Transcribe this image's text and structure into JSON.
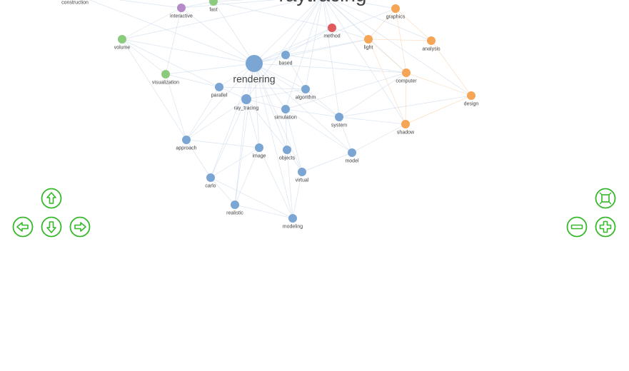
{
  "graph": {
    "colors": {
      "blue": "#7ba6d4",
      "orange": "#f5a556",
      "green": "#8acb7e",
      "purple": "#b48bc8",
      "red": "#e0595c",
      "edge": "#c9d8ea",
      "control": "#35b82a"
    },
    "nodes": [
      {
        "id": "raytracing",
        "label": "raytracing",
        "group": "red",
        "size": "huge"
      },
      {
        "id": "construction",
        "label": "construction",
        "group": "green",
        "size": "small"
      },
      {
        "id": "interactive",
        "label": "interactive",
        "group": "purple",
        "size": "small"
      },
      {
        "id": "fast",
        "label": "fast",
        "group": "green",
        "size": "small"
      },
      {
        "id": "graphics",
        "label": "graphics",
        "group": "orange",
        "size": "small"
      },
      {
        "id": "method",
        "label": "method",
        "group": "red",
        "size": "small"
      },
      {
        "id": "volume",
        "label": "volume",
        "group": "green",
        "size": "small"
      },
      {
        "id": "light",
        "label": "light",
        "group": "orange",
        "size": "small"
      },
      {
        "id": "analysis",
        "label": "analysis",
        "group": "orange",
        "size": "small"
      },
      {
        "id": "rendering",
        "label": "rendering",
        "group": "blue",
        "size": "large"
      },
      {
        "id": "based",
        "label": "based",
        "group": "blue",
        "size": "small"
      },
      {
        "id": "computer",
        "label": "computer",
        "group": "orange",
        "size": "small"
      },
      {
        "id": "visualization",
        "label": "visualization",
        "group": "green",
        "size": "small"
      },
      {
        "id": "parallel",
        "label": "parallel",
        "group": "blue",
        "size": "small"
      },
      {
        "id": "algorithm",
        "label": "algorithm",
        "group": "blue",
        "size": "small"
      },
      {
        "id": "design",
        "label": "design",
        "group": "orange",
        "size": "small"
      },
      {
        "id": "ray_tracing",
        "label": "ray_tracing",
        "group": "blue",
        "size": "medium"
      },
      {
        "id": "simulation",
        "label": "simulation",
        "group": "blue",
        "size": "small"
      },
      {
        "id": "system",
        "label": "system",
        "group": "blue",
        "size": "small"
      },
      {
        "id": "shadow",
        "label": "shadow",
        "group": "orange",
        "size": "small"
      },
      {
        "id": "approach",
        "label": "approach",
        "group": "blue",
        "size": "small"
      },
      {
        "id": "image",
        "label": "image",
        "group": "blue",
        "size": "small"
      },
      {
        "id": "objects",
        "label": "objects",
        "group": "blue",
        "size": "small"
      },
      {
        "id": "model",
        "label": "model",
        "group": "blue",
        "size": "small"
      },
      {
        "id": "virtual",
        "label": "virtual",
        "group": "blue",
        "size": "small"
      },
      {
        "id": "carlo",
        "label": "carlo",
        "group": "blue",
        "size": "small"
      },
      {
        "id": "realistic",
        "label": "realistic",
        "group": "blue",
        "size": "small"
      },
      {
        "id": "modeling",
        "label": "modeling",
        "group": "blue",
        "size": "small"
      }
    ],
    "edges": [
      [
        "rendering",
        "raytracing"
      ],
      [
        "rendering",
        "based"
      ],
      [
        "rendering",
        "parallel"
      ],
      [
        "rendering",
        "ray_tracing"
      ],
      [
        "rendering",
        "algorithm"
      ],
      [
        "rendering",
        "simulation"
      ],
      [
        "rendering",
        "image"
      ],
      [
        "rendering",
        "objects"
      ],
      [
        "rendering",
        "approach"
      ],
      [
        "rendering",
        "visualization"
      ],
      [
        "rendering",
        "volume"
      ],
      [
        "rendering",
        "interactive"
      ],
      [
        "rendering",
        "fast"
      ],
      [
        "rendering",
        "system"
      ],
      [
        "rendering",
        "model"
      ],
      [
        "rendering",
        "carlo"
      ],
      [
        "rendering",
        "realistic"
      ],
      [
        "rendering",
        "modeling"
      ],
      [
        "rendering",
        "virtual"
      ],
      [
        "rendering",
        "computer"
      ],
      [
        "rendering",
        "light"
      ],
      [
        "rendering",
        "method"
      ],
      [
        "rendering",
        "construction"
      ],
      [
        "rendering",
        "graphics"
      ],
      [
        "raytracing",
        "based"
      ],
      [
        "raytracing",
        "method"
      ],
      [
        "raytracing",
        "light"
      ],
      [
        "raytracing",
        "graphics"
      ],
      [
        "raytracing",
        "computer"
      ],
      [
        "raytracing",
        "analysis"
      ],
      [
        "raytracing",
        "design"
      ],
      [
        "raytracing",
        "shadow"
      ],
      [
        "raytracing",
        "simulation"
      ],
      [
        "raytracing",
        "algorithm"
      ],
      [
        "raytracing",
        "system"
      ],
      [
        "raytracing",
        "interactive"
      ],
      [
        "raytracing",
        "fast"
      ],
      [
        "raytracing",
        "volume"
      ],
      [
        "raytracing",
        "construction"
      ],
      [
        "raytracing",
        "ray_tracing"
      ],
      [
        "ray_tracing",
        "simulation"
      ],
      [
        "ray_tracing",
        "image"
      ],
      [
        "ray_tracing",
        "objects"
      ],
      [
        "ray_tracing",
        "carlo"
      ],
      [
        "ray_tracing",
        "realistic"
      ],
      [
        "ray_tracing",
        "approach"
      ],
      [
        "ray_tracing",
        "parallel"
      ],
      [
        "ray_tracing",
        "algorithm"
      ],
      [
        "simulation",
        "system"
      ],
      [
        "simulation",
        "objects"
      ],
      [
        "simulation",
        "virtual"
      ],
      [
        "simulation",
        "model"
      ],
      [
        "system",
        "model"
      ],
      [
        "system",
        "shadow"
      ],
      [
        "system",
        "computer"
      ],
      [
        "system",
        "design"
      ],
      [
        "image",
        "realistic"
      ],
      [
        "image",
        "carlo"
      ],
      [
        "image",
        "modeling"
      ],
      [
        "objects",
        "virtual"
      ],
      [
        "objects",
        "modeling"
      ],
      [
        "virtual",
        "model"
      ],
      [
        "virtual",
        "modeling"
      ],
      [
        "realistic",
        "modeling"
      ],
      [
        "carlo",
        "realistic"
      ],
      [
        "approach",
        "carlo"
      ],
      [
        "approach",
        "image"
      ],
      [
        "approach",
        "visualization"
      ],
      [
        "approach",
        "parallel"
      ],
      [
        "parallel",
        "algorithm"
      ],
      [
        "parallel",
        "visualization"
      ],
      [
        "parallel",
        "volume"
      ],
      [
        "algorithm",
        "based"
      ],
      [
        "algorithm",
        "system"
      ],
      [
        "based",
        "light"
      ],
      [
        "based",
        "method"
      ],
      [
        "light",
        "analysis"
      ],
      [
        "light",
        "computer"
      ],
      [
        "light",
        "shadow"
      ],
      [
        "computer",
        "design"
      ],
      [
        "computer",
        "shadow"
      ],
      [
        "computer",
        "graphics"
      ],
      [
        "graphics",
        "analysis"
      ],
      [
        "graphics",
        "light"
      ],
      [
        "analysis",
        "design"
      ],
      [
        "shadow",
        "design"
      ],
      [
        "model",
        "shadow"
      ],
      [
        "volume",
        "visualization"
      ],
      [
        "volume",
        "interactive"
      ],
      [
        "interactive",
        "fast"
      ],
      [
        "interactive",
        "construction"
      ],
      [
        "fast",
        "method"
      ],
      [
        "visualization",
        "interactive"
      ],
      [
        "approach",
        "volume"
      ],
      [
        "modeling",
        "carlo"
      ],
      [
        "simulation",
        "computer"
      ],
      [
        "based",
        "computer"
      ],
      [
        "method",
        "light"
      ]
    ]
  },
  "controls": {
    "pan_up": "arrow-up",
    "pan_left": "arrow-left",
    "pan_down": "arrow-down",
    "pan_right": "arrow-right",
    "zoom_out": "minus",
    "zoom_in": "plus",
    "fit": "fit-to-screen"
  }
}
